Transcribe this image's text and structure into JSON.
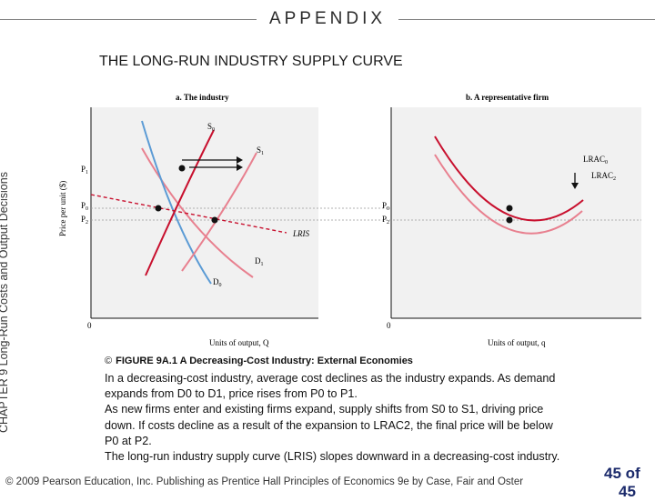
{
  "header": {
    "title": "APPENDIX"
  },
  "slide_title": "THE LONG-RUN INDUSTRY SUPPLY CURVE",
  "side_label": "CHAPTER 9  Long-Run Costs and Output Decisions",
  "figure": {
    "panel_a_title": "a. The industry",
    "panel_b_title": "b. A representative firm",
    "y_axis_label": "Price per unit ($)",
    "x_axis_label_a": "Units of output, Q",
    "x_axis_label_b": "Units of output, q",
    "origin_label": "0",
    "price_labels": {
      "p1": "P",
      "p1_sub": "1",
      "p0": "P",
      "p0_sub": "0",
      "p2": "P",
      "p2_sub": "2"
    },
    "curve_labels": {
      "s0": "S",
      "s0_sub": "0",
      "s1": "S",
      "s1_sub": "1",
      "d1": "D",
      "d1_sub": "1",
      "d0": "D",
      "d0_sub": "0",
      "lris": "LRIS",
      "lrac0": "LRAC",
      "lrac0_sub": "0",
      "lrac2": "LRAC",
      "lrac2_sub": "2"
    },
    "colors": {
      "red": "#c8102e",
      "pink": "#e8808f",
      "blue": "#5b9bd5",
      "dark": "#111111"
    }
  },
  "caption": {
    "bullet": "©",
    "text": "FIGURE 9A.1  A Decreasing-Cost Industry: External Economies"
  },
  "body_lines": [
    "In a decreasing-cost industry, average cost declines as the industry expands. As demand",
    "expands from D0 to D1, price rises from P0 to P1.",
    "As new firms enter and existing firms expand, supply shifts from S0 to S1, driving price",
    "down. If costs decline as a result of the expansion to LRAC2, the final price will be below",
    "P0 at P2.",
    "The long-run industry supply curve (LRIS) slopes downward in a decreasing-cost industry."
  ],
  "footer": "© 2009 Pearson Education, Inc. Publishing as Prentice Hall   Principles of Economics 9e by Case, Fair and Oster",
  "page_number": "45 of",
  "page_total": "45"
}
